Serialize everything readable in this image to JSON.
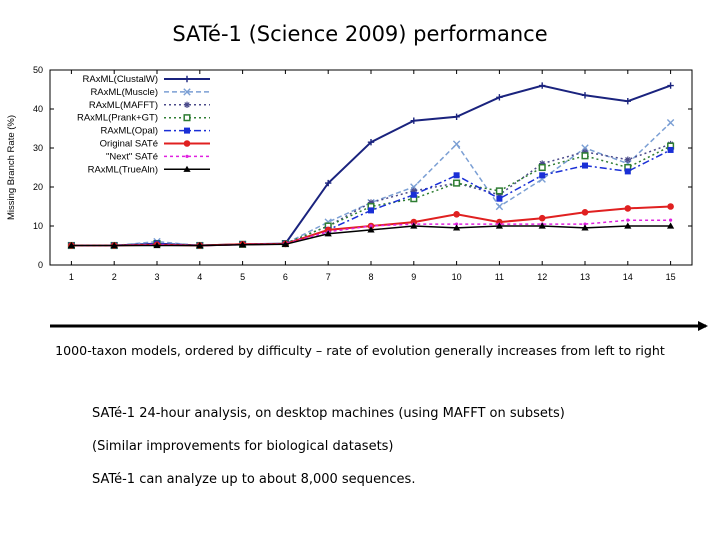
{
  "slide": {
    "title": "SATé-1 (Science 2009) performance",
    "caption": "1000-taxon models, ordered by difficulty – rate of evolution generally increases from left to right",
    "bullets": [
      "SATé-1 24-hour analysis, on desktop machines (using MAFFT on subsets)",
      "(Similar improvements for biological datasets)",
      "SATé-1 can analyze up to about 8,000 sequences."
    ]
  },
  "chart_data": {
    "type": "line",
    "title": "",
    "xlabel": "",
    "ylabel": "Missing Branch Rate (%)",
    "x": [
      1,
      2,
      3,
      4,
      5,
      6,
      7,
      8,
      9,
      10,
      11,
      12,
      13,
      14,
      15
    ],
    "xlim": [
      0.5,
      15.5
    ],
    "ylim": [
      0,
      50
    ],
    "yticks": [
      0,
      10,
      20,
      30,
      40,
      50
    ],
    "legend_position": "top-left",
    "series": [
      {
        "name": "RAxML(ClustalW)",
        "color": "#1a237e",
        "marker": "plus",
        "dash": "",
        "values": [
          5,
          5,
          5.5,
          5,
          5.3,
          5.5,
          21,
          31.5,
          37,
          38,
          43,
          46,
          43.5,
          42,
          46
        ]
      },
      {
        "name": "RAxML(Muscle)",
        "color": "#7b9fd4",
        "marker": "x",
        "dash": "5,3",
        "values": [
          5,
          5,
          6,
          5,
          5.3,
          5.5,
          11,
          16,
          20,
          31,
          15,
          22,
          30,
          26,
          36.5
        ]
      },
      {
        "name": "RAxML(MAFFT)",
        "color": "#4a4a8a",
        "marker": "star",
        "dash": "2,3",
        "values": [
          5,
          5,
          5.5,
          5,
          5.3,
          5.5,
          10,
          16,
          19,
          21,
          18,
          26,
          29,
          27,
          31
        ]
      },
      {
        "name": "RAxML(Prank+GT)",
        "color": "#2e7d32",
        "marker": "square-open",
        "dash": "2,3",
        "values": [
          5,
          5,
          5.5,
          5,
          5.3,
          5.5,
          10,
          15,
          17,
          21,
          19,
          25,
          28,
          25,
          30.5
        ]
      },
      {
        "name": "RAxML(Opal)",
        "color": "#1a2fd6",
        "marker": "square",
        "dash": "7,3,2,3",
        "values": [
          5,
          5,
          5.5,
          5,
          5.3,
          5.5,
          9,
          14,
          18,
          23,
          17,
          23,
          25.5,
          24,
          29.5
        ]
      },
      {
        "name": "Original SATé",
        "color": "#e02020",
        "marker": "circle",
        "dash": "",
        "values": [
          5,
          5,
          5.2,
          5,
          5.3,
          5.4,
          9,
          10,
          11,
          13,
          11,
          12,
          13.5,
          14.5,
          15
        ]
      },
      {
        "name": "\"Next\" SATé",
        "color": "#e020e0",
        "marker": "dot",
        "dash": "3,3",
        "values": [
          5,
          5,
          5.2,
          5,
          5.2,
          5.4,
          8.5,
          10,
          10.5,
          10.5,
          10.5,
          10.5,
          10.5,
          11.5,
          11.5
        ]
      },
      {
        "name": "RAxML(TrueAln)",
        "color": "#000000",
        "marker": "triangle",
        "dash": "",
        "values": [
          5,
          5,
          5,
          5,
          5.2,
          5.3,
          8,
          9,
          10,
          9.5,
          10,
          10,
          9.5,
          10,
          10
        ]
      }
    ]
  }
}
